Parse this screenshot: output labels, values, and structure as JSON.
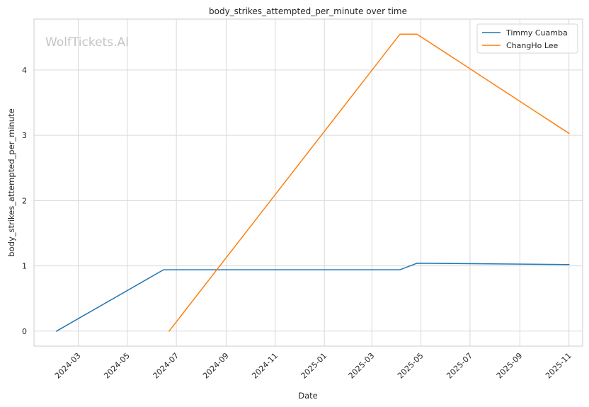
{
  "watermark": "WolfTickets.AI",
  "chart_data": {
    "type": "line",
    "title": "body_strikes_attempted_per_minute over time",
    "xlabel": "Date",
    "ylabel": "body_strikes_attempted_per_minute",
    "x_ticks": [
      "2024-03",
      "2024-05",
      "2024-07",
      "2024-09",
      "2024-11",
      "2025-01",
      "2025-03",
      "2025-05",
      "2025-07",
      "2025-09",
      "2025-11"
    ],
    "y_ticks": [
      0,
      1,
      2,
      3,
      4
    ],
    "xlim": [
      "2024-01-06",
      "2025-11-18"
    ],
    "ylim": [
      -0.23,
      4.78
    ],
    "grid": true,
    "legend_position": "top-right",
    "series": [
      {
        "name": "Timmy Cuamba",
        "color": "#1f77b4",
        "points": [
          {
            "x": "2024-02-03",
            "y": 0.0
          },
          {
            "x": "2024-06-15",
            "y": 0.94
          },
          {
            "x": "2025-04-05",
            "y": 0.94
          },
          {
            "x": "2025-04-26",
            "y": 1.04
          },
          {
            "x": "2025-11-01",
            "y": 1.02
          }
        ]
      },
      {
        "name": "ChangHo Lee",
        "color": "#ff7f0e",
        "points": [
          {
            "x": "2024-06-22",
            "y": 0.0
          },
          {
            "x": "2025-04-05",
            "y": 4.55
          },
          {
            "x": "2025-04-26",
            "y": 4.55
          },
          {
            "x": "2025-11-01",
            "y": 3.03
          }
        ]
      }
    ]
  }
}
